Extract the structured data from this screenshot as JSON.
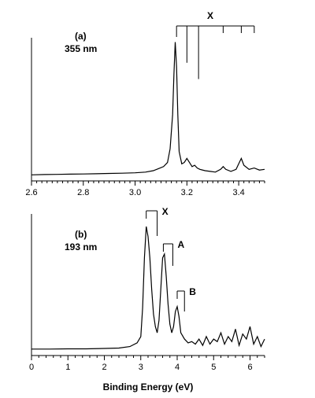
{
  "chart_data": [
    {
      "type": "line",
      "panel_label": "(a)",
      "wavelength": "355 nm",
      "xlim": [
        2.6,
        3.5
      ],
      "xticks": [
        "2.6",
        "2.8",
        "3.0",
        "3.2",
        "3.4"
      ],
      "x": [
        2.6,
        2.65,
        2.7,
        2.75,
        2.8,
        2.85,
        2.9,
        2.95,
        3.0,
        3.04,
        3.07,
        3.09,
        3.11,
        3.125,
        3.135,
        3.145,
        3.15,
        3.155,
        3.16,
        3.165,
        3.17,
        3.18,
        3.19,
        3.2,
        3.21,
        3.22,
        3.23,
        3.24,
        3.25,
        3.27,
        3.29,
        3.31,
        3.33,
        3.34,
        3.35,
        3.37,
        3.39,
        3.4,
        3.41,
        3.42,
        3.44,
        3.46,
        3.48,
        3.5
      ],
      "y": [
        0.01,
        0.012,
        0.013,
        0.015,
        0.016,
        0.018,
        0.02,
        0.022,
        0.025,
        0.03,
        0.04,
        0.055,
        0.07,
        0.1,
        0.2,
        0.45,
        0.75,
        0.98,
        0.8,
        0.45,
        0.18,
        0.09,
        0.1,
        0.13,
        0.1,
        0.07,
        0.08,
        0.06,
        0.05,
        0.04,
        0.035,
        0.03,
        0.05,
        0.07,
        0.05,
        0.035,
        0.05,
        0.09,
        0.13,
        0.08,
        0.05,
        0.06,
        0.045,
        0.05
      ],
      "annotation": {
        "label": "X",
        "comb_x": [
          3.16,
          3.2,
          3.245,
          3.34,
          3.41,
          3.46
        ],
        "line_depths": [
          1.0,
          0.52,
          0.75,
          0.1,
          0.1,
          0.1
        ]
      }
    },
    {
      "type": "line",
      "panel_label": "(b)",
      "wavelength": "193 nm",
      "xlim": [
        0,
        6.4
      ],
      "xticks": [
        "0",
        "1",
        "2",
        "3",
        "4",
        "5",
        "6"
      ],
      "xlabel": "Binding Energy (eV)",
      "x": [
        0.0,
        0.5,
        1.0,
        1.5,
        2.0,
        2.4,
        2.7,
        2.9,
        3.0,
        3.05,
        3.1,
        3.15,
        3.2,
        3.25,
        3.3,
        3.35,
        3.4,
        3.45,
        3.5,
        3.55,
        3.6,
        3.65,
        3.7,
        3.75,
        3.8,
        3.85,
        3.9,
        3.95,
        4.0,
        4.05,
        4.1,
        4.2,
        4.3,
        4.4,
        4.5,
        4.6,
        4.7,
        4.8,
        4.9,
        5.0,
        5.1,
        5.2,
        5.3,
        5.4,
        5.5,
        5.6,
        5.7,
        5.8,
        5.9,
        6.0,
        6.1,
        6.2,
        6.3,
        6.4
      ],
      "y": [
        0.02,
        0.02,
        0.022,
        0.022,
        0.025,
        0.028,
        0.04,
        0.07,
        0.12,
        0.35,
        0.75,
        1.0,
        0.92,
        0.75,
        0.5,
        0.3,
        0.2,
        0.15,
        0.25,
        0.5,
        0.75,
        0.78,
        0.6,
        0.38,
        0.22,
        0.15,
        0.2,
        0.32,
        0.36,
        0.28,
        0.15,
        0.1,
        0.07,
        0.08,
        0.06,
        0.1,
        0.05,
        0.12,
        0.06,
        0.1,
        0.08,
        0.15,
        0.06,
        0.12,
        0.08,
        0.18,
        0.05,
        0.14,
        0.1,
        0.2,
        0.06,
        0.12,
        0.04,
        0.1
      ],
      "annotations": [
        {
          "label": "X",
          "comb_x": [
            3.15,
            3.45
          ]
        },
        {
          "label": "A",
          "comb_x": [
            3.62,
            3.88
          ]
        },
        {
          "label": "B",
          "comb_x": [
            4.0,
            4.2
          ]
        }
      ]
    }
  ]
}
